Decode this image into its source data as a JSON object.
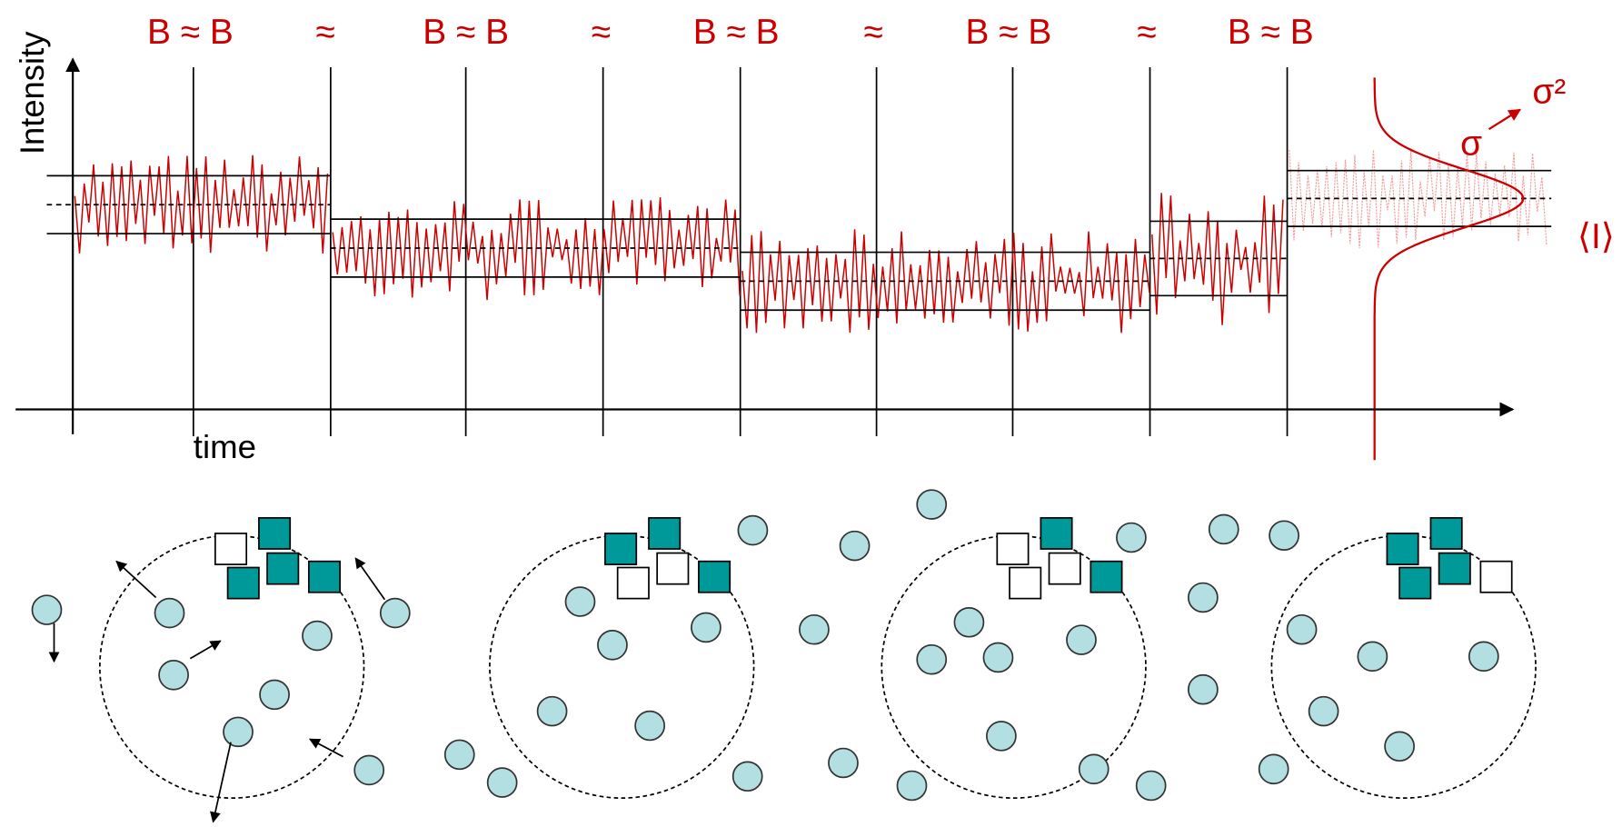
{
  "axis": {
    "y_label": "Intensity",
    "x_label": "time"
  },
  "segment_labels": [
    "B ≈ B",
    "B ≈ B",
    "B ≈ B",
    "B ≈ B",
    "B ≈ B"
  ],
  "boundary_labels": [
    "≈",
    "≈",
    "≈",
    "≈"
  ],
  "distribution": {
    "sigma": "σ",
    "sigma_squared": "σ²",
    "mean": "⟨I⟩"
  }
}
